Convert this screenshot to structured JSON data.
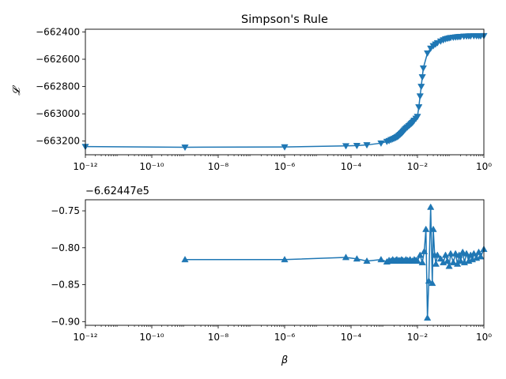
{
  "chart_data": [
    {
      "type": "line",
      "title": "Simpson's Rule",
      "xlabel": "",
      "ylabel": "𝓛",
      "xscale": "log",
      "xlim": [
        1e-12,
        1
      ],
      "ylim": [
        -663300,
        -662380
      ],
      "x_ticks": [
        1e-12,
        1e-10,
        1e-08,
        1e-06,
        0.0001,
        0.01,
        1
      ],
      "x_tick_labels": [
        "10⁻¹²",
        "10⁻¹⁰",
        "10⁻⁸",
        "10⁻⁶",
        "10⁻⁴",
        "10⁻²",
        "10⁰"
      ],
      "y_ticks": [
        -662400,
        -662600,
        -662800,
        -663000,
        -663200
      ],
      "y_tick_labels": [
        "−662400",
        "−662600",
        "−662800",
        "−663000",
        "−663200"
      ],
      "marker": "triangle-down",
      "color": "#1f77b4",
      "series": [
        {
          "x": [
            1e-12,
            1e-09,
            1e-06,
            7e-05,
            0.00015,
            0.0003,
            0.0008,
            0.0012,
            0.0014,
            0.0016,
            0.0018,
            0.002,
            0.0022,
            0.0024,
            0.0026,
            0.0028,
            0.003,
            0.0032,
            0.0034,
            0.0036,
            0.0038,
            0.004,
            0.0043,
            0.0046,
            0.005,
            0.0055,
            0.006,
            0.0065,
            0.007,
            0.0075,
            0.008,
            0.009,
            0.01,
            0.011,
            0.012,
            0.013,
            0.014,
            0.015,
            0.02,
            0.025,
            0.03,
            0.035,
            0.04,
            0.05,
            0.06,
            0.07,
            0.08,
            0.09,
            0.1,
            0.12,
            0.14,
            0.16,
            0.18,
            0.2,
            0.25,
            0.3,
            0.35,
            0.4,
            0.5,
            0.6,
            0.7,
            0.8,
            1.0
          ],
          "y": [
            -663240,
            -663245,
            -663243,
            -663235,
            -663233,
            -663228,
            -663215,
            -663203,
            -663197,
            -663190,
            -663185,
            -663180,
            -663175,
            -663170,
            -663165,
            -663158,
            -663152,
            -663145,
            -663140,
            -663133,
            -663127,
            -663120,
            -663112,
            -663104,
            -663097,
            -663088,
            -663080,
            -663072,
            -663065,
            -663057,
            -663048,
            -663034,
            -663020,
            -662950,
            -662870,
            -662800,
            -662730,
            -662665,
            -662555,
            -662520,
            -662502,
            -662490,
            -662480,
            -662468,
            -662459,
            -662452,
            -662448,
            -662445,
            -662442,
            -662440,
            -662438,
            -662436,
            -662435,
            -662434,
            -662432,
            -662431,
            -662430,
            -662430,
            -662429,
            -662429,
            -662429,
            -662429,
            -662428
          ]
        }
      ]
    },
    {
      "type": "line",
      "title": "",
      "xlabel": "β",
      "ylabel": "",
      "xscale": "log",
      "xlim": [
        1e-12,
        1
      ],
      "ylim": [
        -0.905,
        -0.735
      ],
      "y_offset_label": "−6.62447e5",
      "x_ticks": [
        1e-12,
        1e-10,
        1e-08,
        1e-06,
        0.0001,
        0.01,
        1
      ],
      "x_tick_labels": [
        "10⁻¹²",
        "10⁻¹⁰",
        "10⁻⁸",
        "10⁻⁶",
        "10⁻⁴",
        "10⁻²",
        "10⁰"
      ],
      "y_ticks": [
        -0.75,
        -0.8,
        -0.85,
        -0.9
      ],
      "y_tick_labels": [
        "−0.75",
        "−0.80",
        "−0.85",
        "−0.90"
      ],
      "marker": "triangle-up",
      "color": "#1f77b4",
      "series": [
        {
          "x": [
            1e-09,
            1e-06,
            7e-05,
            0.00015,
            0.0003,
            0.0008,
            0.0012,
            0.0014,
            0.0016,
            0.0018,
            0.002,
            0.0022,
            0.0024,
            0.0026,
            0.0028,
            0.003,
            0.0033,
            0.0036,
            0.004,
            0.0045,
            0.005,
            0.0055,
            0.006,
            0.007,
            0.008,
            0.009,
            0.01,
            0.012,
            0.014,
            0.016,
            0.018,
            0.02,
            0.022,
            0.025,
            0.028,
            0.03,
            0.033,
            0.036,
            0.04,
            0.05,
            0.06,
            0.07,
            0.08,
            0.09,
            0.1,
            0.12,
            0.14,
            0.16,
            0.18,
            0.2,
            0.23,
            0.26,
            0.3,
            0.35,
            0.4,
            0.45,
            0.5,
            0.6,
            0.7,
            0.8,
            1.0
          ],
          "y": [
            -0.816,
            -0.816,
            -0.813,
            -0.815,
            -0.818,
            -0.816,
            -0.819,
            -0.817,
            -0.818,
            -0.816,
            -0.818,
            -0.817,
            -0.816,
            -0.818,
            -0.817,
            -0.818,
            -0.816,
            -0.817,
            -0.818,
            -0.816,
            -0.817,
            -0.818,
            -0.816,
            -0.818,
            -0.816,
            -0.817,
            -0.818,
            -0.81,
            -0.82,
            -0.805,
            -0.775,
            -0.895,
            -0.845,
            -0.745,
            -0.848,
            -0.775,
            -0.81,
            -0.822,
            -0.81,
            -0.815,
            -0.82,
            -0.81,
            -0.818,
            -0.825,
            -0.808,
            -0.82,
            -0.808,
            -0.822,
            -0.81,
            -0.818,
            -0.806,
            -0.82,
            -0.808,
            -0.818,
            -0.81,
            -0.816,
            -0.808,
            -0.814,
            -0.806,
            -0.812,
            -0.802
          ]
        }
      ]
    }
  ]
}
